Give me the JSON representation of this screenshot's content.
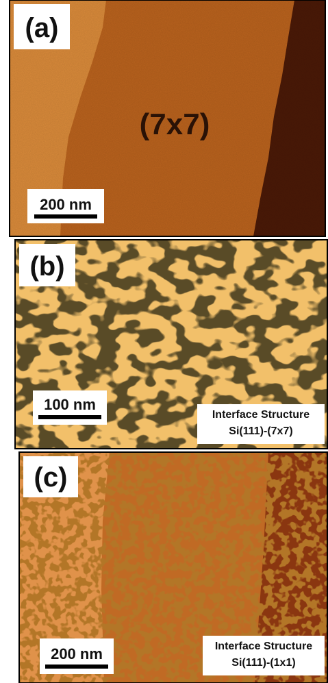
{
  "panels": [
    {
      "label": "(a)",
      "annotation": "(7x7)",
      "scale_bar": "200 nm"
    },
    {
      "label": "(b)",
      "scale_bar": "100 nm",
      "caption": [
        "Interface Structure",
        "Si(111)-(7x7)"
      ]
    },
    {
      "label": "(c)",
      "scale_bar": "200 nm",
      "caption": [
        "Interface Structure",
        "Si(111)-(1x1)"
      ]
    }
  ]
}
